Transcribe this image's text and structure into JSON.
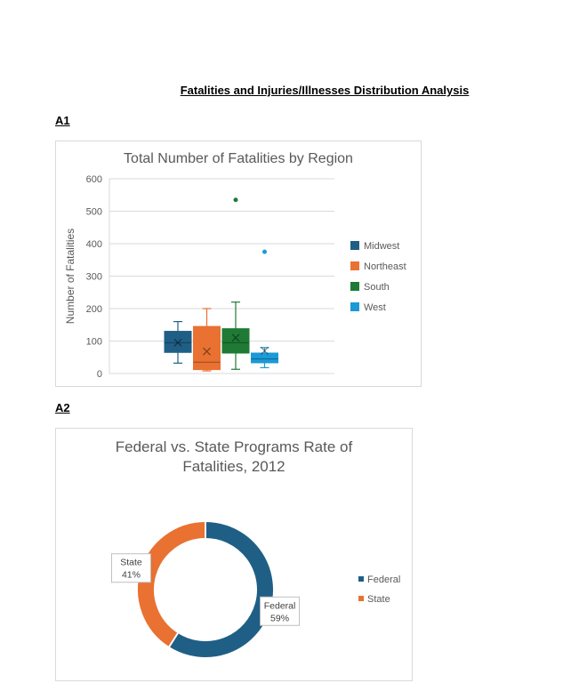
{
  "page": {
    "title": "Fatalities and Injuries/Illnesses Distribution Analysis",
    "section_a1": "A1",
    "section_a2": "A2"
  },
  "chart_data": [
    {
      "type": "boxplot",
      "title": "Total Number of Fatalities by Region",
      "ylabel": "Number of Fatalities",
      "xlabel": "",
      "ylim": [
        0,
        600
      ],
      "yticks": [
        0,
        100,
        200,
        300,
        400,
        500,
        600
      ],
      "grid": true,
      "legend_position": "right",
      "series": [
        {
          "name": "Midwest",
          "color": "#1f5f85",
          "min": 32,
          "q1": 65,
          "median": 95,
          "q3": 130,
          "max": 160,
          "mean": 95,
          "outliers": []
        },
        {
          "name": "Northeast",
          "color": "#e97132",
          "min": 8,
          "q1": 12,
          "median": 35,
          "q3": 145,
          "max": 200,
          "mean": 68,
          "outliers": []
        },
        {
          "name": "South",
          "color": "#1e7a35",
          "min": 13,
          "q1": 63,
          "median": 95,
          "q3": 138,
          "max": 220,
          "mean": 110,
          "outliers": [
            535
          ]
        },
        {
          "name": "West",
          "color": "#1a9ad6",
          "min": 18,
          "q1": 33,
          "median": 45,
          "q3": 63,
          "max": 80,
          "mean": 70,
          "outliers": [
            375
          ]
        }
      ]
    },
    {
      "type": "pie",
      "title": "Federal vs. State Programs Rate of Fatalities, 2012",
      "title_lines": [
        "Federal vs. State Programs Rate of",
        "Fatalities, 2012"
      ],
      "donut": true,
      "legend_position": "right",
      "slices": [
        {
          "label": "Federal",
          "value": 59,
          "display": "59%",
          "color": "#1f5f85"
        },
        {
          "label": "State",
          "value": 41,
          "display": "41%",
          "color": "#e97132"
        }
      ]
    }
  ]
}
